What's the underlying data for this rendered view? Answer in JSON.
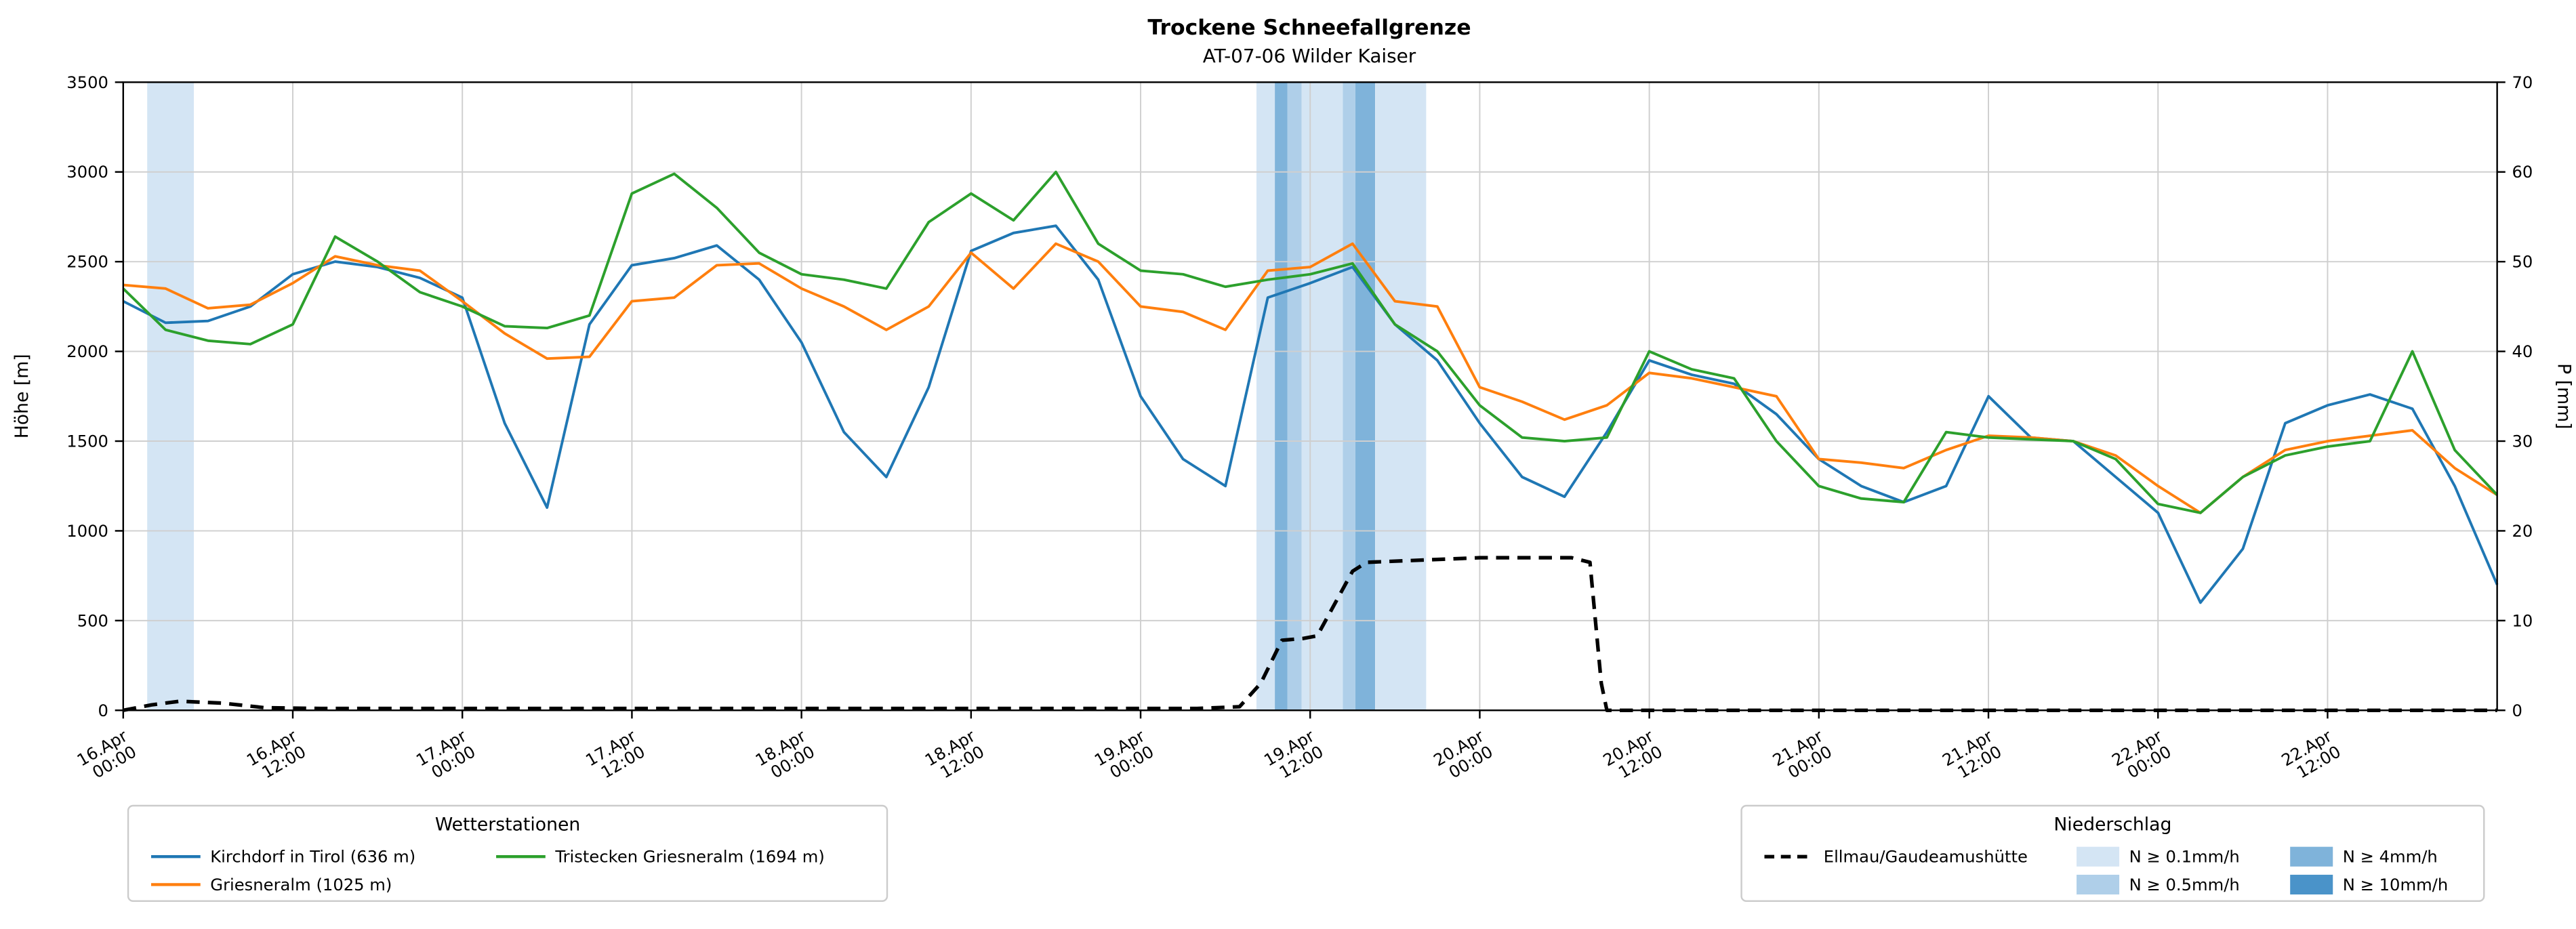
{
  "chart_data": {
    "type": "line",
    "title": "Trockene Schneefallgrenze",
    "subtitle": "AT-07-06 Wilder Kaiser",
    "ylabel_left": "Höhe [m]",
    "ylabel_right": "P [mm]",
    "ylim_left": [
      0,
      3500
    ],
    "ylim_right": [
      0,
      70
    ],
    "yticks_left": [
      0,
      500,
      1000,
      1500,
      2000,
      2500,
      3000,
      3500
    ],
    "yticks_right": [
      0,
      10,
      20,
      30,
      40,
      50,
      60,
      70
    ],
    "x_unit": "hours since 16.Apr 00:00",
    "xlim": [
      0,
      168
    ],
    "grid": true,
    "legend_position": "below",
    "xticks": [
      {
        "h": 0,
        "line1": "16.Apr",
        "line2": "00:00"
      },
      {
        "h": 12,
        "line1": "16.Apr",
        "line2": "12:00"
      },
      {
        "h": 24,
        "line1": "17.Apr",
        "line2": "00:00"
      },
      {
        "h": 36,
        "line1": "17.Apr",
        "line2": "12:00"
      },
      {
        "h": 48,
        "line1": "18.Apr",
        "line2": "00:00"
      },
      {
        "h": 60,
        "line1": "18.Apr",
        "line2": "12:00"
      },
      {
        "h": 72,
        "line1": "19.Apr",
        "line2": "00:00"
      },
      {
        "h": 84,
        "line1": "19.Apr",
        "line2": "12:00"
      },
      {
        "h": 96,
        "line1": "20.Apr",
        "line2": "00:00"
      },
      {
        "h": 108,
        "line1": "20.Apr",
        "line2": "12:00"
      },
      {
        "h": 120,
        "line1": "21.Apr",
        "line2": "00:00"
      },
      {
        "h": 132,
        "line1": "21.Apr",
        "line2": "12:00"
      },
      {
        "h": 144,
        "line1": "22.Apr",
        "line2": "00:00"
      },
      {
        "h": 156,
        "line1": "22.Apr",
        "line2": "12:00"
      }
    ],
    "series": [
      {
        "name": "Kirchdorf in Tirol (636 m)",
        "color": "#1f77b4",
        "axis": "left",
        "x_start": 0,
        "x_step": 3,
        "values": [
          2280,
          2160,
          2170,
          2250,
          2430,
          2500,
          2470,
          2410,
          2300,
          1600,
          1130,
          2150,
          2480,
          2520,
          2590,
          2400,
          2050,
          1550,
          1300,
          1800,
          2560,
          2660,
          2700,
          2400,
          1750,
          1400,
          1250,
          2300,
          2380,
          2470,
          2150,
          1950,
          1600,
          1300,
          1190,
          1550,
          1950,
          1870,
          1820,
          1650,
          1400,
          1250,
          1160,
          1250,
          1750,
          1520,
          1500,
          1300,
          1100,
          600,
          900,
          1600,
          1700,
          1760,
          1680,
          1250,
          700
        ]
      },
      {
        "name": "Griesneralm (1025 m)",
        "color": "#ff7f0e",
        "axis": "left",
        "x_start": 0,
        "x_step": 3,
        "values": [
          2370,
          2350,
          2240,
          2260,
          2380,
          2530,
          2480,
          2450,
          2280,
          2100,
          1960,
          1970,
          2280,
          2300,
          2480,
          2490,
          2350,
          2250,
          2120,
          2250,
          2550,
          2350,
          2600,
          2500,
          2250,
          2220,
          2120,
          2450,
          2470,
          2600,
          2280,
          2250,
          1800,
          1720,
          1620,
          1700,
          1880,
          1850,
          1800,
          1750,
          1400,
          1380,
          1350,
          1450,
          1530,
          1520,
          1500,
          1420,
          1250,
          1100,
          1300,
          1450,
          1500,
          1530,
          1560,
          1350,
          1200
        ]
      },
      {
        "name": "Tristecken Griesneralm  (1694 m)",
        "color": "#2ca02c",
        "axis": "left",
        "x_start": 0,
        "x_step": 3,
        "values": [
          2350,
          2120,
          2060,
          2040,
          2150,
          2640,
          2500,
          2330,
          2250,
          2140,
          2130,
          2200,
          2880,
          2990,
          2800,
          2550,
          2430,
          2400,
          2350,
          2720,
          2880,
          2730,
          3000,
          2600,
          2450,
          2430,
          2360,
          2400,
          2430,
          2490,
          2150,
          2000,
          1700,
          1520,
          1500,
          1520,
          2000,
          1900,
          1850,
          1500,
          1250,
          1180,
          1160,
          1550,
          1520,
          1510,
          1500,
          1400,
          1150,
          1100,
          1300,
          1420,
          1470,
          1500,
          2000,
          1450,
          1200
        ]
      }
    ],
    "precip_series": {
      "name": "Ellmau/Gaudeamushütte",
      "color": "#000000",
      "style": "dashed",
      "axis": "right",
      "x": [
        0,
        2,
        4,
        7,
        10,
        14,
        76,
        79,
        80.5,
        82,
        83.5,
        84.5,
        87,
        88,
        96,
        102.5,
        103.8,
        104.6,
        105,
        168
      ],
      "values": [
        0,
        0.6,
        1.0,
        0.8,
        0.3,
        0.2,
        0.2,
        0.4,
        3.0,
        7.8,
        8.0,
        8.3,
        15.5,
        16.5,
        17.0,
        17.0,
        16.5,
        3.0,
        0,
        0
      ]
    },
    "band_levels": [
      {
        "level": 1,
        "label": "N ≥ 0.1mm/h",
        "color": "#d4e5f4"
      },
      {
        "level": 2,
        "label": "N ≥ 0.5mm/h",
        "color": "#afcfe9"
      },
      {
        "level": 3,
        "label": "N ≥ 4mm/h",
        "color": "#7fb3da"
      },
      {
        "level": 4,
        "label": "N ≥ 10mm/h",
        "color": "#4a93c9"
      }
    ],
    "precip_bands": [
      {
        "from": 1.7,
        "to": 5.0,
        "level": 1
      },
      {
        "from": 80.2,
        "to": 81.5,
        "level": 1
      },
      {
        "from": 81.5,
        "to": 82.4,
        "level": 3
      },
      {
        "from": 82.4,
        "to": 83.4,
        "level": 2
      },
      {
        "from": 83.4,
        "to": 86.3,
        "level": 1
      },
      {
        "from": 86.3,
        "to": 87.2,
        "level": 2
      },
      {
        "from": 87.2,
        "to": 88.6,
        "level": 3
      },
      {
        "from": 88.6,
        "to": 92.2,
        "level": 1
      }
    ]
  },
  "legends": {
    "stations": {
      "title": "Wetterstationen"
    },
    "precip": {
      "title": "Niederschlag"
    }
  }
}
